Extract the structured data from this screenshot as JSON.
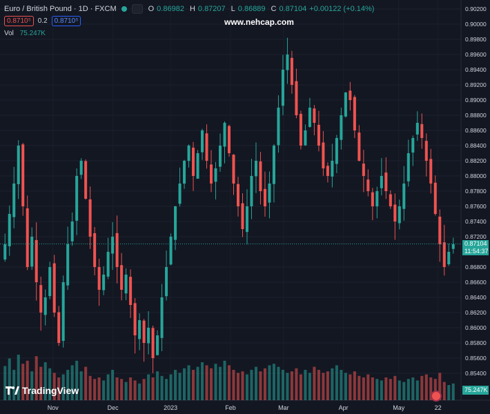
{
  "header": {
    "symbol": "Euro / British Pound · 1D · FXCM",
    "ohlc": [
      {
        "k": "O",
        "v": "0.86982"
      },
      {
        "k": "H",
        "v": "0.87207"
      },
      {
        "k": "L",
        "v": "0.86889"
      },
      {
        "k": "C",
        "v": "0.87104"
      }
    ],
    "change": "+0.00122 (+0.14%)",
    "sell_price": "0.8710⁵",
    "spread": "0.2",
    "buy_price": "0.8710⁵"
  },
  "volume": {
    "label": "Vol",
    "value": "75.247K"
  },
  "watermark": "www.nehcap.com",
  "logo_text": "TradingView",
  "last_price_label": {
    "price": "0.87104",
    "countdown": "11:54:37"
  },
  "volume_axis_label": "75.247K",
  "colors": {
    "up": "#26a69a",
    "down": "#ef5350",
    "background": "#131722",
    "text": "#d1d4dc"
  },
  "chart_data": {
    "type": "candlestick",
    "y_ticks": [
      "0.90200",
      "0.90000",
      "0.89800",
      "0.89600",
      "0.89400",
      "0.89200",
      "0.89000",
      "0.88800",
      "0.88600",
      "0.88400",
      "0.88200",
      "0.88000",
      "0.87800",
      "0.87600",
      "0.87400",
      "0.87200",
      "0.86800",
      "0.86600",
      "0.86400",
      "0.86200",
      "0.86000",
      "0.85800",
      "0.85600",
      "0.85400"
    ],
    "x_ticks": [
      "Nov",
      "Dec",
      "2023",
      "Feb",
      "Mar",
      "Apr",
      "May",
      "22"
    ],
    "last_price": 0.87104,
    "close_path": [
      0.871,
      0.875,
      0.879,
      0.884,
      0.876,
      0.868,
      0.872,
      0.866,
      0.862,
      0.864,
      0.868,
      0.862,
      0.858,
      0.866,
      0.871,
      0.874,
      0.88,
      0.882,
      0.877,
      0.872,
      0.868,
      0.865,
      0.867,
      0.87,
      0.872,
      0.868,
      0.865,
      0.867,
      0.863,
      0.859,
      0.861,
      0.858,
      0.86,
      0.856,
      0.859,
      0.864,
      0.868,
      0.872,
      0.876,
      0.879,
      0.882,
      0.884,
      0.88,
      0.883,
      0.886,
      0.882,
      0.879,
      0.881,
      0.884,
      0.887,
      0.883,
      0.879,
      0.876,
      0.873,
      0.876,
      0.88,
      0.882,
      0.878,
      0.876,
      0.879,
      0.884,
      0.889,
      0.894,
      0.896,
      0.892,
      0.888,
      0.884,
      0.886,
      0.889,
      0.887,
      0.884,
      0.881,
      0.88,
      0.882,
      0.885,
      0.888,
      0.891,
      0.89,
      0.886,
      0.882,
      0.88,
      0.878,
      0.876,
      0.878,
      0.88,
      0.878,
      0.876,
      0.874,
      0.876,
      0.879,
      0.883,
      0.885,
      0.887,
      0.885,
      0.882,
      0.879,
      0.875,
      0.871,
      0.868,
      0.87,
      0.871
    ],
    "volumes": [
      0.45,
      0.55,
      0.4,
      0.6,
      0.48,
      0.52,
      0.38,
      0.58,
      0.44,
      0.5,
      0.42,
      0.36,
      0.3,
      0.34,
      0.4,
      0.46,
      0.52,
      0.38,
      0.44,
      0.32,
      0.28,
      0.3,
      0.26,
      0.34,
      0.4,
      0.3,
      0.28,
      0.24,
      0.3,
      0.26,
      0.22,
      0.28,
      0.34,
      0.3,
      0.38,
      0.32,
      0.28,
      0.34,
      0.4,
      0.36,
      0.42,
      0.46,
      0.4,
      0.44,
      0.5,
      0.46,
      0.42,
      0.48,
      0.44,
      0.52,
      0.46,
      0.4,
      0.36,
      0.38,
      0.34,
      0.4,
      0.44,
      0.38,
      0.42,
      0.46,
      0.48,
      0.44,
      0.4,
      0.36,
      0.38,
      0.42,
      0.34,
      0.4,
      0.36,
      0.44,
      0.4,
      0.36,
      0.38,
      0.42,
      0.46,
      0.4,
      0.36,
      0.34,
      0.38,
      0.32,
      0.3,
      0.34,
      0.3,
      0.28,
      0.26,
      0.3,
      0.28,
      0.32,
      0.26,
      0.24,
      0.28,
      0.3,
      0.26,
      0.32,
      0.34,
      0.3,
      0.28,
      0.36,
      0.24,
      0.2,
      0.22
    ]
  }
}
